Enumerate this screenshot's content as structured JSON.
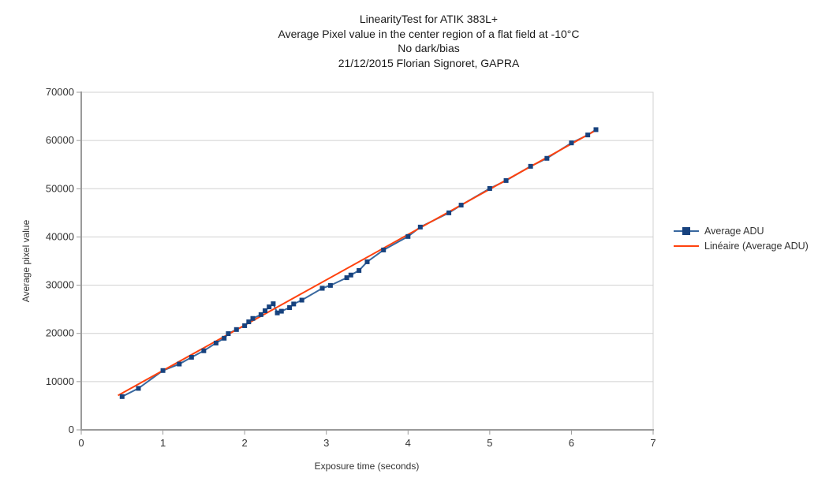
{
  "title": {
    "line1": "LinearityTest for ATIK 383L+",
    "line2": "Average Pixel value in the center region of a flat field at -10°C",
    "line3": "No dark/bias",
    "line4": "21/12/2015 Florian Signoret, GAPRA"
  },
  "chart_data": {
    "type": "line",
    "title": "LinearityTest for ATIK 383L+",
    "subtitle_lines": [
      "Average Pixel value in the center region of a flat field at -10°C",
      "No dark/bias",
      "21/12/2015 Florian Signoret, GAPRA"
    ],
    "xlabel": "Exposure time (seconds)",
    "ylabel": "Average pixel value",
    "xlim": [
      0,
      7
    ],
    "ylim": [
      0,
      70000
    ],
    "x_ticks": [
      0,
      1,
      2,
      3,
      4,
      5,
      6,
      7
    ],
    "y_ticks": [
      0,
      10000,
      20000,
      30000,
      40000,
      50000,
      60000,
      70000
    ],
    "grid": "horizontal-only",
    "legend_position": "right",
    "series": [
      {
        "name": "Average ADU",
        "kind": "line+markers",
        "marker": "square",
        "color": "#39689f",
        "marker_color": "#17427e",
        "points": [
          [
            0.5,
            6900
          ],
          [
            0.7,
            8600
          ],
          [
            1.0,
            12300
          ],
          [
            1.2,
            13650
          ],
          [
            1.35,
            15050
          ],
          [
            1.5,
            16400
          ],
          [
            1.65,
            18000
          ],
          [
            1.75,
            19000
          ],
          [
            1.8,
            19950
          ],
          [
            1.9,
            20800
          ],
          [
            2.0,
            21600
          ],
          [
            2.05,
            22400
          ],
          [
            2.1,
            23100
          ],
          [
            2.2,
            23900
          ],
          [
            2.25,
            24700
          ],
          [
            2.3,
            25500
          ],
          [
            2.35,
            26150
          ],
          [
            2.4,
            24250
          ],
          [
            2.45,
            24600
          ],
          [
            2.55,
            25350
          ],
          [
            2.6,
            26100
          ],
          [
            2.7,
            26900
          ],
          [
            2.95,
            29350
          ],
          [
            3.05,
            29950
          ],
          [
            3.25,
            31550
          ],
          [
            3.3,
            32100
          ],
          [
            3.4,
            33050
          ],
          [
            3.5,
            34850
          ],
          [
            3.7,
            37300
          ],
          [
            4.0,
            40100
          ],
          [
            4.15,
            42050
          ],
          [
            4.5,
            45000
          ],
          [
            4.65,
            46600
          ],
          [
            5.0,
            50050
          ],
          [
            5.2,
            51700
          ],
          [
            5.5,
            54650
          ],
          [
            5.7,
            56300
          ],
          [
            6.0,
            59500
          ],
          [
            6.2,
            61150
          ],
          [
            6.3,
            62250
          ]
        ]
      },
      {
        "name": "Linéaire (Average ADU)",
        "kind": "linear-trendline",
        "color": "#ff420e",
        "points": [
          [
            0.45,
            7130
          ],
          [
            6.3,
            62120
          ]
        ]
      }
    ]
  },
  "colors": {
    "background": "#ffffff",
    "grid": "#d0d0d0",
    "axis": "#9a9a9a",
    "text": "#333333",
    "series1_line": "#39689f",
    "series1_marker": "#17427e",
    "series2_line": "#ff420e"
  }
}
